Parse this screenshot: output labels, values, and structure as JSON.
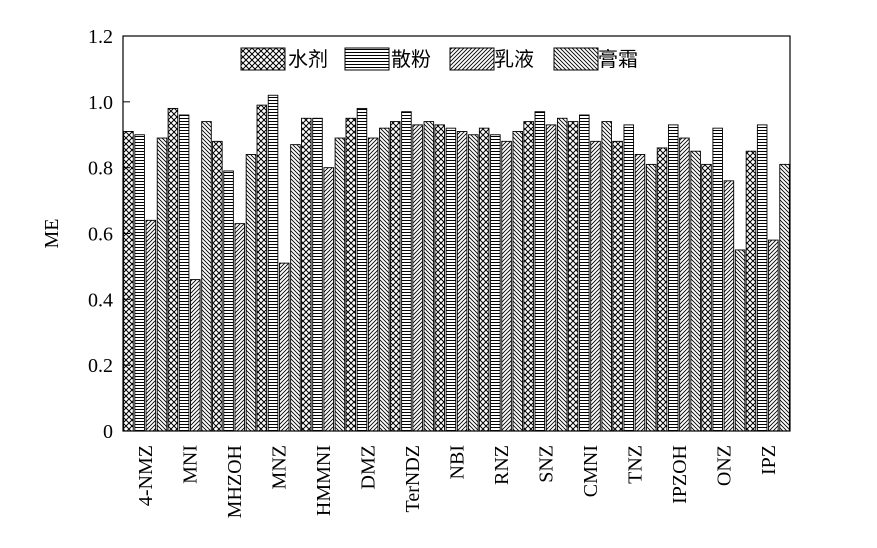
{
  "chart_data": {
    "type": "bar",
    "title": "",
    "xlabel": "",
    "ylabel": "ME",
    "ylim": [
      0,
      1.2
    ],
    "yticks": [
      "0",
      "0.2",
      "0.4",
      "0.6",
      "0.8",
      "1.0",
      "1.2"
    ],
    "grid": false,
    "legend_position": "top",
    "categories": [
      "4-NMZ",
      "MNI",
      "MHZOH",
      "MNZ",
      "HMMNI",
      "DMZ",
      "TerNDZ",
      "NBI",
      "RNZ",
      "SNZ",
      "CMNI",
      "TNZ",
      "IPZOH",
      "ONZ",
      "IPZ"
    ],
    "series": [
      {
        "name": "水剂",
        "pattern": "crosshatch",
        "values": [
          0.91,
          0.98,
          0.88,
          0.99,
          0.95,
          0.95,
          0.94,
          0.93,
          0.92,
          0.94,
          0.94,
          0.88,
          0.86,
          0.81,
          0.85
        ]
      },
      {
        "name": "散粉",
        "pattern": "horizontal",
        "values": [
          0.9,
          0.96,
          0.79,
          1.02,
          0.95,
          0.98,
          0.97,
          0.92,
          0.9,
          0.97,
          0.96,
          0.93,
          0.93,
          0.92,
          0.93
        ]
      },
      {
        "name": "乳液",
        "pattern": "diagonal",
        "values": [
          0.64,
          0.46,
          0.63,
          0.51,
          0.8,
          0.89,
          0.93,
          0.91,
          0.88,
          0.93,
          0.88,
          0.84,
          0.89,
          0.76,
          0.58
        ]
      },
      {
        "name": "膏霜",
        "pattern": "backdiagonal",
        "values": [
          0.89,
          0.94,
          0.84,
          0.87,
          0.89,
          0.92,
          0.94,
          0.9,
          0.91,
          0.95,
          0.94,
          0.81,
          0.85,
          0.55,
          0.81
        ]
      }
    ]
  }
}
